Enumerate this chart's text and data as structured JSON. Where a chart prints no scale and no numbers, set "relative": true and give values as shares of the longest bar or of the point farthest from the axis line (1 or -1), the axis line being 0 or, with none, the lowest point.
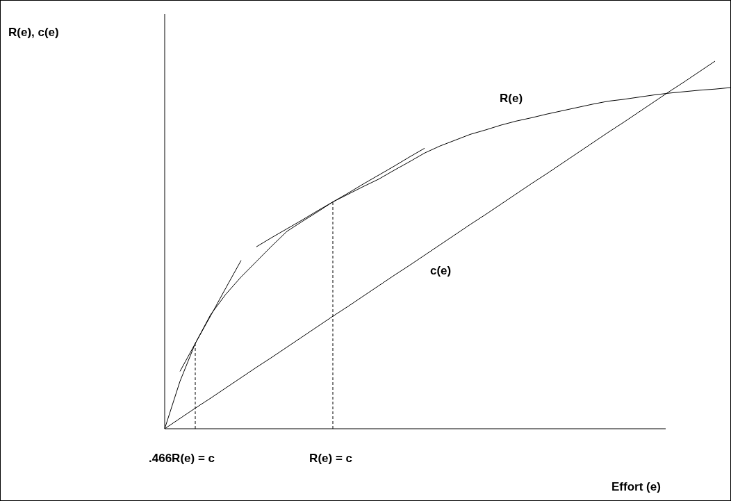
{
  "chart_data": {
    "type": "line",
    "relative": true,
    "xlabel": "Effort (e)",
    "annotations": [
      "R(e), c(e)",
      ".466R(e) = c",
      "R(e) = c"
    ],
    "marker": "none",
    "line_style": "solid",
    "categories": [
      null,
      null,
      null,
      null,
      null,
      null,
      null,
      null,
      null,
      null,
      null,
      null,
      null,
      null,
      null,
      null,
      null,
      null,
      null,
      null,
      null,
      null,
      null,
      null,
      null,
      null,
      null,
      null,
      null,
      null,
      null,
      null,
      null,
      null,
      null,
      null,
      null,
      null
    ],
    "series": [
      {
        "name": "R(e)",
        "color": "#000000",
        "values": [
          0,
          0.129,
          0.232,
          0.31,
          0.366,
          0.413,
          0.455,
          0.497,
          0.537,
          0.564,
          0.59,
          0.617,
          0.638,
          0.659,
          0.679,
          0.703,
          0.726,
          0.75,
          0.769,
          0.785,
          0.801,
          0.813,
          0.826,
          0.837,
          0.846,
          0.856,
          0.865,
          0.874,
          0.883,
          0.891,
          0.896,
          0.902,
          0.908,
          0.913,
          0.917,
          0.921,
          0.924,
          0.928
        ]
      },
      {
        "name": "c(e)",
        "color": "#000000",
        "values": [
          0,
          0.028,
          0.056,
          0.083,
          0.111,
          0.139,
          0.167,
          0.194,
          0.222,
          0.25,
          0.278,
          0.306,
          0.333,
          0.361,
          0.389,
          0.417,
          0.444,
          0.472,
          0.5,
          0.528,
          0.556,
          0.583,
          0.611,
          0.639,
          0.667,
          0.694,
          0.722,
          0.75,
          0.778,
          0.806,
          0.833,
          0.861,
          0.889,
          0.917,
          0.944,
          0.972,
          1,
          null
        ]
      },
      {
        "color": "#000000",
        "values": [
          null,
          0.156,
          0.232,
          0.307,
          0.383,
          0.458,
          null,
          null,
          null,
          null,
          null,
          null,
          null,
          null,
          null,
          null,
          null,
          null,
          null,
          null,
          null,
          null,
          null,
          null,
          null,
          null,
          null,
          null,
          null,
          null,
          null,
          null,
          null,
          null,
          null,
          null,
          null,
          null
        ]
      },
      {
        "color": "#000000",
        "values": [
          null,
          null,
          null,
          null,
          null,
          null,
          0.495,
          0.52,
          0.544,
          0.568,
          0.593,
          0.617,
          0.641,
          0.666,
          0.69,
          0.714,
          0.739,
          0.763,
          null,
          null,
          null,
          null,
          null,
          null,
          null,
          null,
          null,
          null,
          null,
          null,
          null,
          null,
          null,
          null,
          null,
          null,
          null,
          null
        ]
      }
    ]
  }
}
